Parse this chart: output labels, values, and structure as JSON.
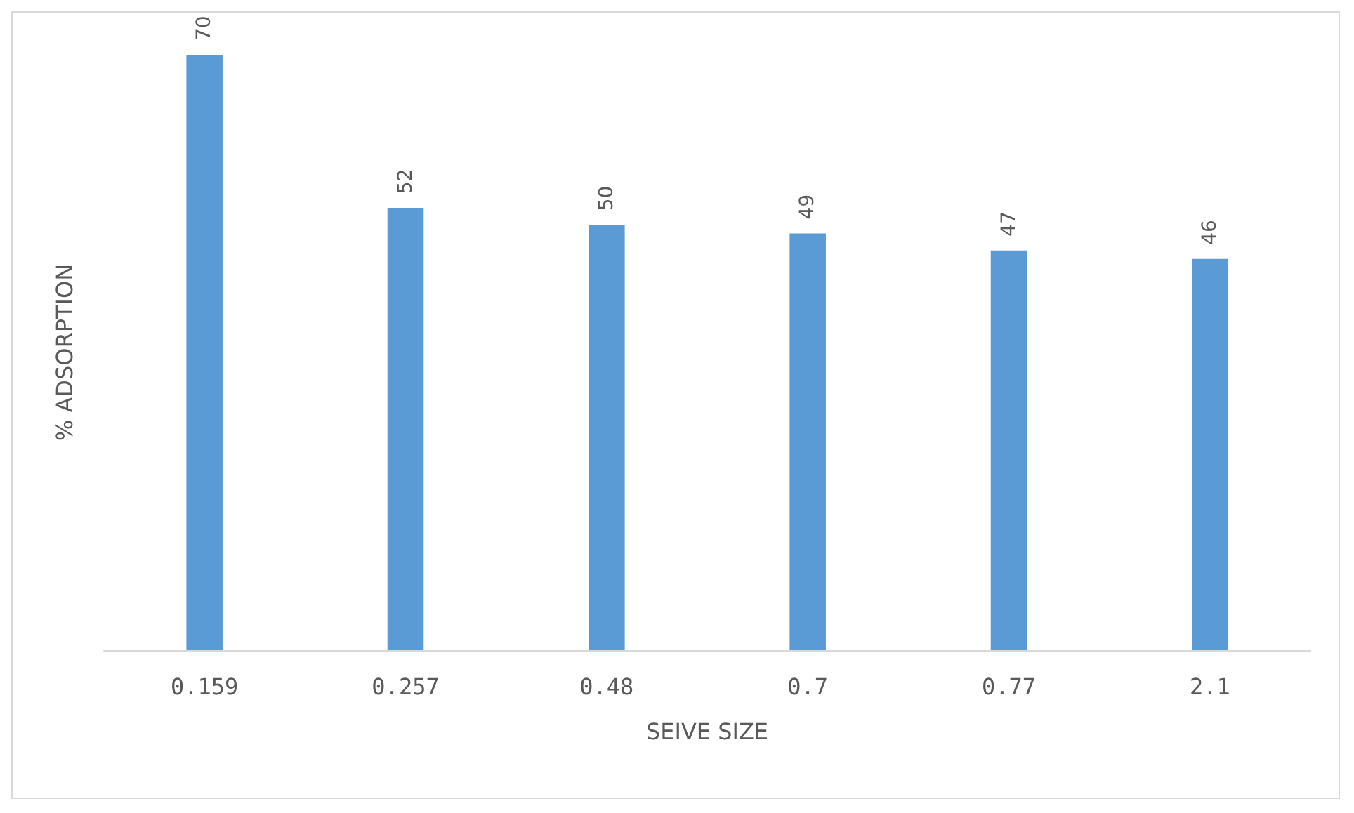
{
  "chart_data": {
    "type": "bar",
    "xlabel": "SEIVE SIZE",
    "ylabel": "% ADSORPTION",
    "categories": [
      "0.159",
      "0.257",
      "0.48",
      "0.7",
      "0.77",
      "2.1"
    ],
    "values": [
      70,
      52,
      50,
      49,
      47,
      46
    ],
    "color": "#5b9bd5",
    "data_labels": true,
    "grid": false,
    "tick_labels": "x"
  }
}
